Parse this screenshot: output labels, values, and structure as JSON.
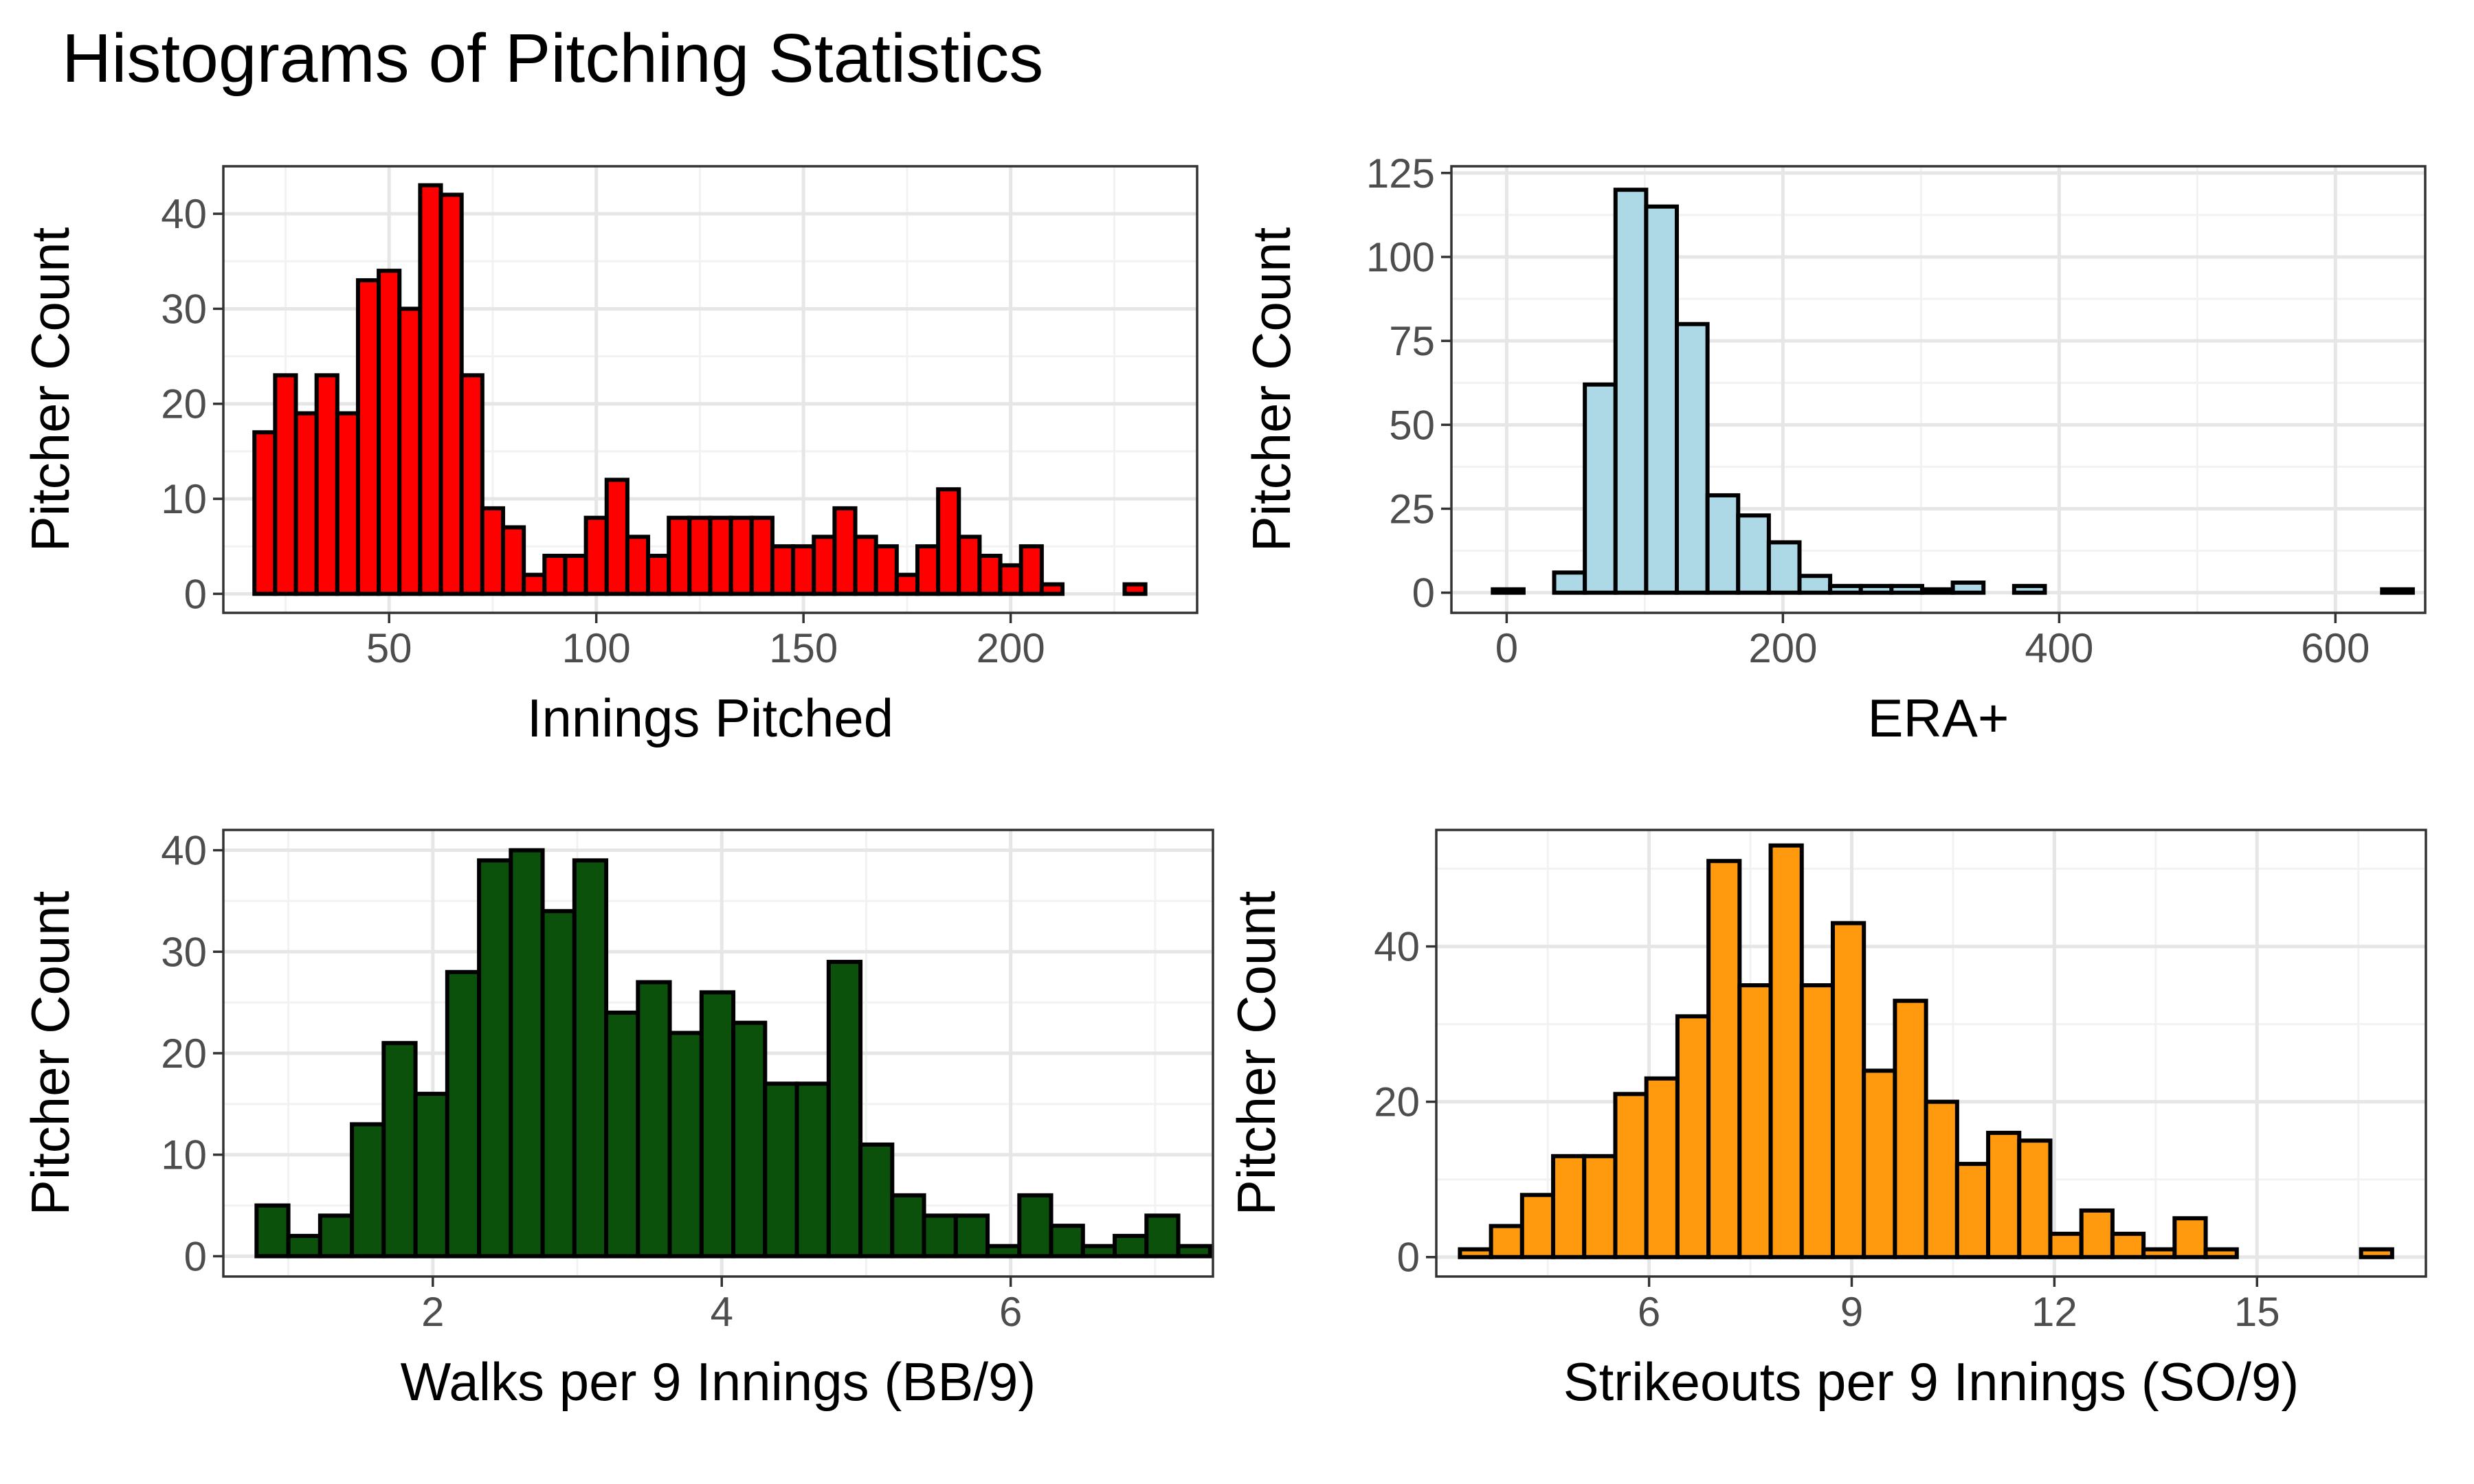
{
  "title": "Histograms of Pitching Statistics",
  "chart_data": [
    {
      "type": "bar",
      "variant": "histogram",
      "fill_color": "#FF0000",
      "xlabel": "Innings Pitched",
      "ylabel": "Pitcher Count",
      "xlim": [
        10,
        245
      ],
      "ylim": [
        -2,
        45
      ],
      "xticks": [
        50,
        100,
        150,
        200
      ],
      "yticks": [
        0,
        10,
        20,
        30,
        40
      ],
      "bin_start": 17.5,
      "bin_width": 5,
      "values": [
        17,
        23,
        19,
        23,
        19,
        33,
        34,
        30,
        43,
        42,
        23,
        9,
        7,
        2,
        4,
        4,
        8,
        12,
        6,
        4,
        8,
        8,
        8,
        8,
        8,
        5,
        5,
        6,
        9,
        6,
        5,
        2,
        5,
        11,
        6,
        4,
        3,
        5,
        1,
        0,
        0,
        0,
        1
      ]
    },
    {
      "type": "bar",
      "variant": "histogram",
      "fill_color": "#ADD8E6",
      "xlabel": "ERA+",
      "ylabel": "Pitcher Count",
      "xlim": [
        -40,
        665
      ],
      "ylim": [
        -6,
        127
      ],
      "xticks": [
        0,
        200,
        400,
        600
      ],
      "yticks": [
        0,
        25,
        50,
        75,
        100,
        125
      ],
      "bin_start": -10,
      "bin_width": 22.2,
      "values": [
        1,
        0,
        6,
        62,
        120,
        115,
        80,
        29,
        23,
        15,
        5,
        2,
        2,
        2,
        1,
        3,
        0,
        2,
        0,
        0,
        0,
        0,
        0,
        0,
        0,
        0,
        0,
        0,
        0,
        1
      ]
    },
    {
      "type": "bar",
      "variant": "histogram",
      "fill_color": "#0B500B",
      "xlabel": "Walks per 9 Innings (BB/9)",
      "ylabel": "Pitcher Count",
      "xlim": [
        0.55,
        7.4
      ],
      "ylim": [
        -2,
        42
      ],
      "xticks": [
        2,
        4,
        6
      ],
      "yticks": [
        0,
        10,
        20,
        30,
        40
      ],
      "bin_start": 0.78,
      "bin_width": 0.22,
      "values": [
        5,
        2,
        4,
        13,
        21,
        16,
        28,
        39,
        40,
        34,
        39,
        24,
        27,
        22,
        26,
        23,
        17,
        17,
        29,
        11,
        6,
        4,
        4,
        1,
        6,
        3,
        1,
        2,
        4,
        1
      ]
    },
    {
      "type": "bar",
      "variant": "histogram",
      "fill_color": "#FF9A0E",
      "xlabel": "Strikeouts per 9 Innings (SO/9)",
      "ylabel": "Pitcher Count",
      "xlim": [
        2.85,
        17.5
      ],
      "ylim": [
        -2.5,
        55
      ],
      "xticks": [
        6,
        9,
        12,
        15
      ],
      "yticks": [
        0,
        20,
        40
      ],
      "bin_start": 3.2,
      "bin_width": 0.46,
      "values": [
        1,
        4,
        8,
        13,
        13,
        21,
        23,
        31,
        51,
        35,
        53,
        35,
        43,
        24,
        33,
        20,
        12,
        16,
        15,
        3,
        6,
        3,
        1,
        5,
        1,
        0,
        0,
        0,
        0,
        1
      ]
    }
  ]
}
